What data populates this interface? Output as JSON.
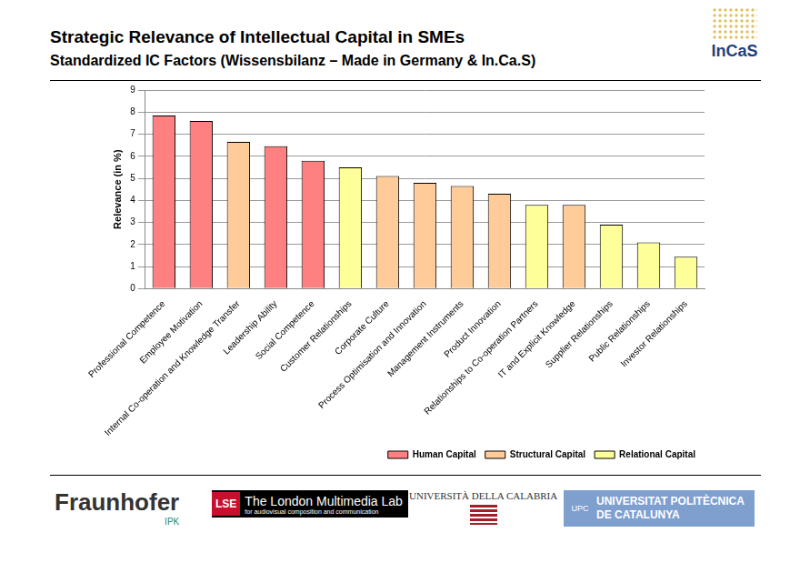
{
  "chart_data": {
    "type": "bar",
    "title": "Strategic Relevance of Intellectual Capital in SMEs",
    "subtitle": "Standardized IC Factors (Wissensbilanz – Made in Germany & In.Ca.S)",
    "y_label": "Relevance (in %)",
    "categories": [
      "Professional Competence",
      "Employee Motivation",
      "Internal Co-operation and Knowledge Transfer",
      "Leadership Ability",
      "Social Competence",
      "Customer Relationships",
      "Corporate Culture",
      "Process Optimisation and Innovation",
      "Management Instruments",
      "Product Innovation",
      "Relationships to Co-operation Partners",
      "IT and Explicit Knowledge",
      "Supplier Relationships",
      "Public Relationships",
      "Investor Relationships"
    ],
    "series": [
      {
        "name": "Human Capital",
        "color": "#ff8080",
        "values": [
          7.85,
          7.6,
          null,
          6.45,
          5.8,
          null,
          null,
          null,
          null,
          null,
          null,
          null,
          null,
          null,
          null
        ]
      },
      {
        "name": "Structural Capital",
        "color": "#ffcc99",
        "values": [
          null,
          null,
          6.65,
          null,
          null,
          null,
          5.1,
          4.8,
          4.65,
          4.3,
          null,
          3.8,
          null,
          null,
          null
        ]
      },
      {
        "name": "Relational Capital",
        "color": "#ffff99",
        "values": [
          null,
          null,
          null,
          null,
          null,
          5.5,
          null,
          null,
          null,
          null,
          3.8,
          null,
          2.9,
          2.1,
          1.45
        ]
      }
    ],
    "ylim": [
      0,
      9
    ],
    "yticks": [
      0,
      1,
      2,
      3,
      4,
      5,
      6,
      7,
      8,
      9
    ],
    "grid": true,
    "legend": "bottom-right"
  },
  "header_logo": "InCaS",
  "footer_logos": [
    [
      "Fraunhofer",
      "IPK"
    ],
    [
      "LSE",
      "The London Multimedia Lab",
      "for audiovisual composition and communication"
    ],
    [
      "UNIVERSITÀ DELLA CALABRIA"
    ],
    [
      "UPC",
      "UNIVERSITAT POLITÈCNICA",
      "DE CATALUNYA"
    ]
  ]
}
